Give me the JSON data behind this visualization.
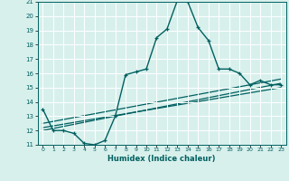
{
  "xlabel": "Humidex (Indice chaleur)",
  "bg_color": "#d8f0ec",
  "grid_color": "#ffffff",
  "line_color": "#006060",
  "xlim": [
    -0.5,
    23.5
  ],
  "ylim": [
    11,
    21
  ],
  "xtick_vals": [
    0,
    1,
    2,
    3,
    4,
    5,
    6,
    7,
    8,
    9,
    10,
    11,
    12,
    13,
    14,
    15,
    16,
    17,
    18,
    19,
    20,
    21,
    22,
    23
  ],
  "ytick_vals": [
    11,
    12,
    13,
    14,
    15,
    16,
    17,
    18,
    19,
    20,
    21
  ],
  "main_line_x": [
    0,
    1,
    2,
    3,
    4,
    5,
    6,
    7,
    8,
    9,
    10,
    11,
    12,
    13,
    14,
    15,
    16,
    17,
    18,
    19,
    20,
    21,
    22,
    23
  ],
  "main_line_y": [
    13.5,
    12.0,
    12.0,
    11.8,
    11.1,
    11.0,
    11.3,
    13.0,
    15.9,
    16.1,
    16.3,
    18.5,
    19.1,
    21.1,
    21.0,
    19.2,
    18.3,
    16.3,
    16.3,
    16.0,
    15.2,
    15.5,
    15.2,
    15.2
  ],
  "ref_line1_x": [
    0,
    23
  ],
  "ref_line1_y": [
    12.0,
    15.3
  ],
  "ref_line2_x": [
    0,
    23
  ],
  "ref_line2_y": [
    12.2,
    15.0
  ],
  "ref_line3_x": [
    0,
    23
  ],
  "ref_line3_y": [
    12.5,
    15.6
  ]
}
